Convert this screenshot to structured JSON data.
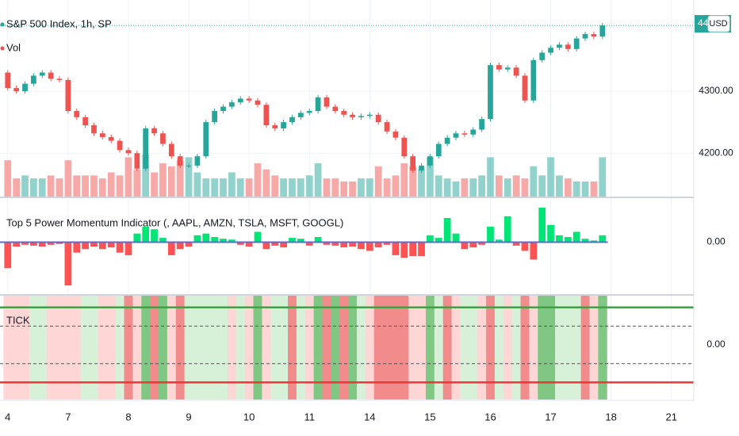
{
  "chart_data": [
    {
      "type": "candlestick",
      "title": "S&P 500 Index, 1h, SP",
      "volume_label": "Vol",
      "last_price_label": "44",
      "currency": "USD",
      "up_color": "#26a69a",
      "down_color": "#ef5350",
      "grid": true,
      "xlim": [
        -0.9,
        79.6
      ],
      "xticks": [
        {
          "value": 0,
          "label": "4"
        },
        {
          "value": 7,
          "label": "7"
        },
        {
          "value": 14,
          "label": "8"
        },
        {
          "value": 21,
          "label": "9"
        },
        {
          "value": 28,
          "label": "10"
        },
        {
          "value": 35,
          "label": "11"
        },
        {
          "value": 42,
          "label": "14"
        },
        {
          "value": 49,
          "label": "15"
        },
        {
          "value": 56,
          "label": "16"
        },
        {
          "value": 63,
          "label": "17"
        },
        {
          "value": 70,
          "label": "18"
        },
        {
          "value": 77,
          "label": "21"
        }
      ],
      "ylim": [
        4130,
        4447
      ],
      "yticks": [
        {
          "value": 4200,
          "label": "4200.00"
        },
        {
          "value": 4300,
          "label": "4300.00"
        }
      ],
      "open": [
        4330,
        4305,
        4300,
        4312,
        4325,
        4330,
        4320,
        4318,
        4268,
        4258,
        4245,
        4232,
        4226,
        4220,
        4205,
        4200,
        4175,
        4240,
        4232,
        4215,
        4195,
        4180,
        4180,
        4195,
        4250,
        4268,
        4275,
        4282,
        4288,
        4285,
        4278,
        4245,
        4240,
        4250,
        4258,
        4265,
        4268,
        4290,
        4275,
        4268,
        4262,
        4258,
        4260,
        4262,
        4250,
        4235,
        4225,
        4195,
        4172,
        4180,
        4195,
        4215,
        4225,
        4232,
        4230,
        4238,
        4255,
        4342,
        4335,
        4338,
        4325,
        4285,
        4350,
        4362,
        4370,
        4375,
        4368,
        4385,
        4392,
        4388
      ],
      "high": [
        4334,
        4309,
        4316,
        4329,
        4334,
        4334,
        4324,
        4322,
        4272,
        4262,
        4249,
        4236,
        4230,
        4224,
        4209,
        4204,
        4244,
        4244,
        4236,
        4219,
        4199,
        4184,
        4199,
        4254,
        4272,
        4279,
        4286,
        4292,
        4292,
        4289,
        4282,
        4249,
        4254,
        4262,
        4269,
        4272,
        4294,
        4294,
        4279,
        4272,
        4266,
        4264,
        4266,
        4266,
        4254,
        4239,
        4229,
        4199,
        4184,
        4199,
        4219,
        4229,
        4236,
        4236,
        4242,
        4259,
        4346,
        4346,
        4342,
        4342,
        4329,
        4354,
        4366,
        4374,
        4379,
        4379,
        4389,
        4396,
        4396,
        4410
      ],
      "low": [
        4301,
        4296,
        4296,
        4308,
        4321,
        4316,
        4314,
        4264,
        4254,
        4241,
        4228,
        4222,
        4216,
        4201,
        4196,
        4171,
        4171,
        4228,
        4211,
        4191,
        4176,
        4176,
        4176,
        4191,
        4246,
        4264,
        4271,
        4278,
        4281,
        4274,
        4241,
        4236,
        4236,
        4246,
        4254,
        4261,
        4264,
        4271,
        4264,
        4258,
        4254,
        4254,
        4256,
        4246,
        4231,
        4221,
        4191,
        4168,
        4168,
        4176,
        4191,
        4211,
        4221,
        4226,
        4226,
        4234,
        4251,
        4331,
        4331,
        4321,
        4281,
        4281,
        4346,
        4358,
        4366,
        4364,
        4364,
        4381,
        4384,
        4384
      ],
      "close": [
        4305,
        4300,
        4312,
        4325,
        4330,
        4320,
        4318,
        4268,
        4258,
        4245,
        4232,
        4226,
        4220,
        4205,
        4200,
        4175,
        4240,
        4232,
        4215,
        4195,
        4180,
        4180,
        4195,
        4250,
        4268,
        4275,
        4282,
        4288,
        4285,
        4278,
        4245,
        4240,
        4250,
        4258,
        4265,
        4268,
        4290,
        4275,
        4268,
        4262,
        4258,
        4260,
        4262,
        4250,
        4235,
        4225,
        4195,
        4172,
        4180,
        4195,
        4215,
        4225,
        4232,
        4230,
        4238,
        4255,
        4342,
        4335,
        4338,
        4325,
        4285,
        4350,
        4362,
        4370,
        4375,
        4368,
        4385,
        4392,
        4388,
        4406
      ],
      "volume_lim": [
        0,
        130
      ],
      "volume": [
        24,
        12,
        14,
        12,
        12,
        14,
        12,
        24,
        14,
        14,
        14,
        12,
        16,
        14,
        26,
        18,
        28,
        16,
        22,
        20,
        24,
        26,
        16,
        12,
        12,
        12,
        16,
        12,
        12,
        22,
        18,
        14,
        12,
        12,
        12,
        14,
        22,
        12,
        12,
        10,
        10,
        12,
        12,
        20,
        12,
        14,
        22,
        20,
        18,
        26,
        14,
        12,
        10,
        12,
        12,
        14,
        26,
        14,
        12,
        14,
        12,
        20,
        14,
        26,
        14,
        12,
        10,
        10,
        10,
        26
      ]
    },
    {
      "type": "bar",
      "title": "Top 5 Power Momentum Indicator (, AAPL, AMZN, TSLA, MSFT, GOOGL)",
      "up_color": "#00e676",
      "down_color": "#ff5252",
      "zero_color": "#5b6bd6",
      "ylim": [
        -60,
        50
      ],
      "yticks": [
        {
          "value": 0,
          "label": "0.00"
        }
      ],
      "values": [
        -30,
        -5,
        -3,
        -4,
        -5,
        -3,
        -2,
        -50,
        -12,
        -8,
        -5,
        -8,
        -6,
        -12,
        -15,
        10,
        18,
        15,
        5,
        -15,
        -8,
        -5,
        8,
        10,
        6,
        4,
        3,
        -3,
        -5,
        12,
        -8,
        -4,
        -6,
        5,
        4,
        -4,
        6,
        -3,
        -4,
        -6,
        -5,
        -8,
        -10,
        -6,
        -3,
        -15,
        -18,
        -16,
        -16,
        8,
        5,
        28,
        10,
        -8,
        -6,
        -3,
        18,
        3,
        30,
        -4,
        -10,
        -20,
        40,
        20,
        8,
        6,
        12,
        4,
        2,
        8
      ]
    },
    {
      "type": "band",
      "title": "TICK",
      "ylim": [
        -1458,
        1312
      ],
      "yticks": [
        {
          "value": 0,
          "label": "0.00"
        }
      ],
      "upper_line": 1000,
      "upper_dash": 500,
      "lower_dash": -500,
      "lower_line": -1000,
      "state_colors": {
        "2": "#81c784",
        "1": "#d7f0d8",
        "-1": "#ffd6d6",
        "-2": "#f28b8b"
      },
      "values": [
        -1,
        -1,
        -1,
        1,
        1,
        -1,
        -1,
        -1,
        -1,
        1,
        1,
        -1,
        -1,
        1,
        -2,
        -1,
        2,
        -2,
        2,
        -1,
        -2,
        1,
        1,
        1,
        1,
        1,
        -1,
        1,
        -1,
        2,
        -1,
        1,
        1,
        -2,
        1,
        -1,
        2,
        -2,
        2,
        -2,
        2,
        1,
        -1,
        -2,
        -2,
        -2,
        -2,
        -1,
        -1,
        2,
        1,
        -2,
        -1,
        1,
        1,
        -1,
        -2,
        1,
        -1,
        1,
        -2,
        -1,
        2,
        2,
        1,
        1,
        1,
        -2,
        -1,
        2
      ]
    }
  ]
}
